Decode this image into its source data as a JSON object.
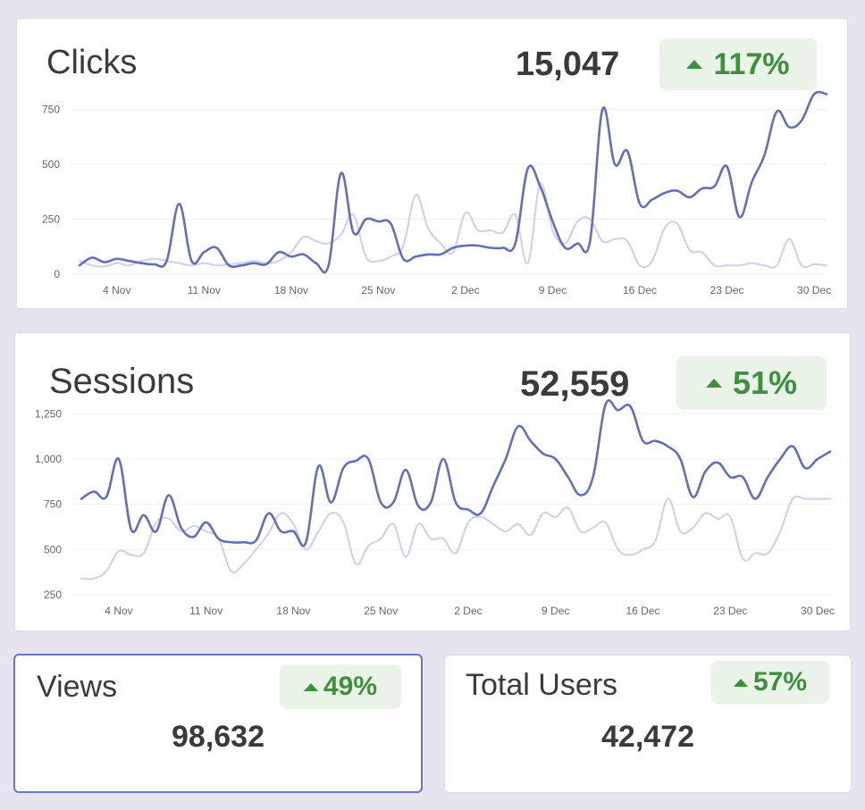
{
  "colors": {
    "primary_line": "#6370b8",
    "secondary_line": "#d3d2ea",
    "gridline": "#f0f0f3",
    "badge_bg": "#eaf3e8",
    "badge_text": "#3f8f3f",
    "axis_text": "#666666"
  },
  "clicks": {
    "title": "Clicks",
    "total": "15,047",
    "change": "117%",
    "change_icon": "triangle-up-icon"
  },
  "sessions": {
    "title": "Sessions",
    "total": "52,559",
    "change": "51%",
    "change_icon": "triangle-up-icon"
  },
  "views": {
    "title": "Views",
    "total": "98,632",
    "change": "49%",
    "change_icon": "triangle-up-icon"
  },
  "total_users": {
    "title": "Total Users",
    "total": "42,472",
    "change": "57%",
    "change_icon": "triangle-up-icon"
  },
  "chart_data": [
    {
      "type": "line",
      "title": "Clicks",
      "xlabel": "",
      "ylabel": "",
      "ylim": [
        0,
        850
      ],
      "yticks": [
        0,
        250,
        500,
        750
      ],
      "ytick_labels": [
        "0",
        "250",
        "500",
        "750"
      ],
      "xlim": [
        1,
        61
      ],
      "xticks": [
        4,
        11,
        18,
        25,
        32,
        39,
        46,
        53,
        60
      ],
      "xtick_labels": [
        "4 Nov",
        "11 Nov",
        "18 Nov",
        "25 Nov",
        "2 Dec",
        "9 Dec",
        "16 Dec",
        "23 Dec",
        "30 Dec"
      ],
      "grid": true,
      "legend": "none",
      "series": [
        {
          "role": "current",
          "color": "#6370b8",
          "x": [
            1,
            2,
            3,
            4,
            5,
            6,
            7,
            8,
            9,
            10,
            11,
            12,
            13,
            14,
            15,
            16,
            17,
            18,
            19,
            20,
            21,
            22,
            23,
            24,
            25,
            26,
            27,
            28,
            29,
            30,
            31,
            32,
            33,
            34,
            35,
            36,
            37,
            38,
            39,
            40,
            41,
            42,
            43,
            44,
            45,
            46,
            47,
            48,
            49,
            50,
            51,
            52,
            53,
            54,
            55,
            56,
            57,
            58,
            59,
            60,
            61
          ],
          "values": [
            40,
            75,
            55,
            70,
            60,
            50,
            45,
            60,
            320,
            60,
            100,
            120,
            40,
            40,
            50,
            45,
            100,
            80,
            90,
            50,
            40,
            460,
            190,
            250,
            240,
            230,
            70,
            80,
            90,
            90,
            120,
            130,
            130,
            120,
            120,
            140,
            480,
            400,
            240,
            120,
            140,
            150,
            750,
            500,
            560,
            320,
            340,
            370,
            380,
            350,
            390,
            400,
            490,
            260,
            420,
            540,
            740,
            670,
            700,
            820,
            820
          ]
        },
        {
          "role": "previous",
          "color": "#d3d2ea",
          "x": [
            1,
            2,
            3,
            4,
            5,
            6,
            7,
            8,
            9,
            10,
            11,
            12,
            13,
            14,
            15,
            16,
            17,
            18,
            19,
            20,
            21,
            22,
            23,
            24,
            25,
            26,
            27,
            28,
            29,
            30,
            31,
            32,
            33,
            34,
            35,
            36,
            37,
            38,
            39,
            40,
            41,
            42,
            43,
            44,
            45,
            46,
            47,
            48,
            49,
            50,
            51,
            52,
            53,
            54,
            55,
            56,
            57,
            58,
            59,
            60,
            61
          ],
          "values": [
            60,
            40,
            35,
            50,
            40,
            60,
            70,
            60,
            50,
            40,
            50,
            40,
            45,
            50,
            60,
            50,
            60,
            100,
            170,
            150,
            140,
            180,
            270,
            80,
            60,
            80,
            130,
            360,
            210,
            140,
            100,
            280,
            200,
            200,
            190,
            270,
            50,
            410,
            200,
            140,
            240,
            250,
            150,
            160,
            150,
            40,
            60,
            210,
            230,
            110,
            100,
            40,
            40,
            40,
            50,
            40,
            40,
            160,
            40,
            45,
            40
          ]
        }
      ]
    },
    {
      "type": "line",
      "title": "Sessions",
      "xlabel": "",
      "ylabel": "",
      "ylim": [
        250,
        1350
      ],
      "yticks": [
        250,
        500,
        750,
        1000,
        1250
      ],
      "ytick_labels": [
        "250",
        "500",
        "750",
        "1,000",
        "1,250"
      ],
      "xlim": [
        1,
        61
      ],
      "xticks": [
        4,
        11,
        18,
        25,
        32,
        39,
        46,
        53,
        60
      ],
      "xtick_labels": [
        "4 Nov",
        "11 Nov",
        "18 Nov",
        "25 Nov",
        "2 Dec",
        "9 Dec",
        "16 Dec",
        "23 Dec",
        "30 Dec"
      ],
      "grid": true,
      "legend": "none",
      "series": [
        {
          "role": "current",
          "color": "#6370b8",
          "x": [
            1,
            2,
            3,
            4,
            5,
            6,
            7,
            8,
            9,
            10,
            11,
            12,
            13,
            14,
            15,
            16,
            17,
            18,
            19,
            20,
            21,
            22,
            23,
            24,
            25,
            26,
            27,
            28,
            29,
            30,
            31,
            32,
            33,
            34,
            35,
            36,
            37,
            38,
            39,
            40,
            41,
            42,
            43,
            44,
            45,
            46,
            47,
            48,
            49,
            50,
            51,
            52,
            53,
            54,
            55,
            56,
            57,
            58,
            59,
            60,
            61
          ],
          "values": [
            780,
            820,
            790,
            1000,
            610,
            690,
            600,
            800,
            620,
            570,
            650,
            560,
            540,
            540,
            550,
            700,
            600,
            600,
            540,
            960,
            760,
            950,
            990,
            1000,
            760,
            760,
            940,
            740,
            760,
            1000,
            760,
            720,
            700,
            850,
            1000,
            1180,
            1100,
            1030,
            1000,
            900,
            800,
            900,
            1300,
            1270,
            1290,
            1100,
            1100,
            1070,
            1000,
            790,
            930,
            980,
            900,
            900,
            780,
            900,
            1000,
            1070,
            950,
            1000,
            1040
          ]
        },
        {
          "role": "previous",
          "color": "#d3d2ea",
          "x": [
            1,
            2,
            3,
            4,
            5,
            6,
            7,
            8,
            9,
            10,
            11,
            12,
            13,
            14,
            15,
            16,
            17,
            18,
            19,
            20,
            21,
            22,
            23,
            24,
            25,
            26,
            27,
            28,
            29,
            30,
            31,
            32,
            33,
            34,
            35,
            36,
            37,
            38,
            39,
            40,
            41,
            42,
            43,
            44,
            45,
            46,
            47,
            48,
            49,
            50,
            51,
            52,
            53,
            54,
            55,
            56,
            57,
            58,
            59,
            60,
            61
          ],
          "values": [
            340,
            340,
            380,
            490,
            470,
            480,
            650,
            670,
            600,
            630,
            600,
            560,
            380,
            420,
            500,
            590,
            700,
            640,
            500,
            600,
            700,
            650,
            420,
            520,
            560,
            640,
            460,
            640,
            560,
            560,
            480,
            650,
            680,
            640,
            600,
            640,
            580,
            700,
            680,
            730,
            600,
            620,
            650,
            500,
            470,
            500,
            550,
            780,
            600,
            620,
            700,
            670,
            680,
            450,
            480,
            480,
            600,
            780,
            780,
            780,
            780
          ]
        }
      ]
    }
  ]
}
